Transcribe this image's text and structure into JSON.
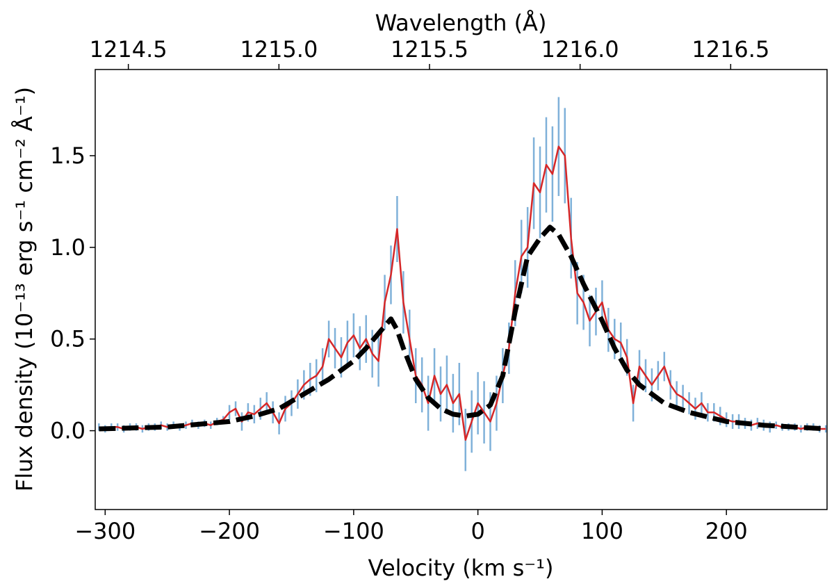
{
  "chart_data": {
    "type": "line",
    "xlabel": "Velocity (km s⁻¹)",
    "ylabel": "Flux density (10⁻¹³ erg s⁻¹ cm⁻² Å⁻¹)",
    "x2label": "Wavelength (Å)",
    "xlim": [
      -308,
      281
    ],
    "ylim": [
      -0.43,
      1.97
    ],
    "x2lim": [
      1214.39,
      1216.82
    ],
    "xticks": [
      {
        "value": -300,
        "label": "−300"
      },
      {
        "value": -200,
        "label": "−200"
      },
      {
        "value": -100,
        "label": "−100"
      },
      0,
      100,
      200
    ],
    "yticks": [
      {
        "value": 0,
        "label": "0.0"
      },
      0.5,
      {
        "value": 1,
        "label": "1.0"
      },
      1.5
    ],
    "x2ticks": [
      1214.5,
      {
        "value": 1215,
        "label": "1215.0"
      },
      1215.5,
      {
        "value": 1216,
        "label": "1216.0"
      },
      1216.5
    ],
    "grid": false,
    "series": [
      {
        "color": "#d62728",
        "error_color": "#7fb1d9",
        "x": [
          -305,
          -300,
          -295,
          -290,
          -285,
          -280,
          -275,
          -270,
          -265,
          -260,
          -255,
          -250,
          -245,
          -240,
          -235,
          -230,
          -225,
          -220,
          -215,
          -210,
          -205,
          -200,
          -195,
          -190,
          -185,
          -180,
          -175,
          -170,
          -165,
          -160,
          -155,
          -150,
          -145,
          -140,
          -135,
          -130,
          -125,
          -120,
          -115,
          -110,
          -105,
          -100,
          -95,
          -90,
          -85,
          -80,
          -75,
          -70,
          -65,
          -60,
          -55,
          -50,
          -45,
          -40,
          -35,
          -30,
          -25,
          -20,
          -15,
          -10,
          -5,
          0,
          5,
          10,
          15,
          20,
          25,
          30,
          35,
          40,
          45,
          50,
          55,
          60,
          65,
          70,
          75,
          80,
          85,
          90,
          95,
          100,
          105,
          110,
          115,
          120,
          125,
          130,
          135,
          140,
          145,
          150,
          155,
          160,
          165,
          170,
          175,
          180,
          185,
          190,
          195,
          200,
          205,
          210,
          215,
          220,
          225,
          230,
          235,
          240,
          245,
          250,
          255,
          260,
          265,
          270,
          275,
          280
        ],
        "values": [
          0.02,
          0.01,
          0.02,
          0.02,
          0.01,
          0.02,
          0.02,
          0.01,
          0.02,
          0.02,
          0.03,
          0.02,
          0.03,
          0.02,
          0.03,
          0.04,
          0.03,
          0.04,
          0.03,
          0.05,
          0.06,
          0.1,
          0.12,
          0.05,
          0.1,
          0.09,
          0.12,
          0.15,
          0.1,
          0.04,
          0.12,
          0.15,
          0.2,
          0.25,
          0.28,
          0.3,
          0.35,
          0.5,
          0.45,
          0.4,
          0.48,
          0.52,
          0.45,
          0.5,
          0.42,
          0.38,
          0.7,
          0.85,
          1.1,
          0.7,
          0.5,
          0.3,
          0.25,
          0.15,
          0.3,
          0.2,
          0.25,
          0.15,
          0.2,
          -0.05,
          0.05,
          0.15,
          0.1,
          0.05,
          0.15,
          0.3,
          0.45,
          0.75,
          0.95,
          1.0,
          1.35,
          1.3,
          1.45,
          1.4,
          1.55,
          1.5,
          1.05,
          0.75,
          0.7,
          0.6,
          0.65,
          0.7,
          0.55,
          0.5,
          0.48,
          0.4,
          0.15,
          0.35,
          0.3,
          0.25,
          0.3,
          0.35,
          0.25,
          0.2,
          0.18,
          0.15,
          0.12,
          0.15,
          0.1,
          0.1,
          0.08,
          0.06,
          0.05,
          0.05,
          0.04,
          0.03,
          0.04,
          0.03,
          0.02,
          0.03,
          0.02,
          0.02,
          0.02,
          0.01,
          0.02,
          0.02,
          0.01,
          0.01
        ],
        "errors": [
          0.02,
          0.02,
          0.02,
          0.02,
          0.02,
          0.02,
          0.02,
          0.02,
          0.02,
          0.02,
          0.02,
          0.02,
          0.02,
          0.02,
          0.02,
          0.02,
          0.02,
          0.02,
          0.02,
          0.02,
          0.02,
          0.04,
          0.04,
          0.05,
          0.05,
          0.05,
          0.06,
          0.06,
          0.06,
          0.06,
          0.07,
          0.07,
          0.08,
          0.08,
          0.09,
          0.09,
          0.1,
          0.1,
          0.11,
          0.11,
          0.12,
          0.12,
          0.12,
          0.13,
          0.13,
          0.14,
          0.15,
          0.16,
          0.18,
          0.17,
          0.16,
          0.15,
          0.15,
          0.15,
          0.15,
          0.15,
          0.16,
          0.16,
          0.17,
          0.17,
          0.17,
          0.17,
          0.17,
          0.16,
          0.15,
          0.15,
          0.14,
          0.18,
          0.2,
          0.22,
          0.25,
          0.25,
          0.26,
          0.26,
          0.27,
          0.26,
          0.22,
          0.17,
          0.15,
          0.14,
          0.13,
          0.12,
          0.12,
          0.11,
          0.11,
          0.1,
          0.1,
          0.09,
          0.09,
          0.09,
          0.08,
          0.08,
          0.08,
          0.07,
          0.07,
          0.06,
          0.06,
          0.06,
          0.05,
          0.05,
          0.05,
          0.04,
          0.04,
          0.04,
          0.03,
          0.03,
          0.03,
          0.03,
          0.03,
          0.02,
          0.02,
          0.02,
          0.02,
          0.02,
          0.02,
          0.02,
          0.02,
          0.02
        ]
      },
      {
        "color": "#000000",
        "dashed": true,
        "x": [
          -305,
          -250,
          -200,
          -180,
          -160,
          -140,
          -120,
          -100,
          -90,
          -80,
          -70,
          -65,
          -60,
          -50,
          -40,
          -30,
          -20,
          -10,
          0,
          10,
          20,
          30,
          40,
          50,
          58,
          65,
          75,
          85,
          100,
          110,
          120,
          130,
          140,
          150,
          170,
          200,
          230,
          280
        ],
        "values": [
          0.01,
          0.02,
          0.05,
          0.08,
          0.12,
          0.2,
          0.28,
          0.38,
          0.45,
          0.53,
          0.61,
          0.55,
          0.45,
          0.28,
          0.18,
          0.12,
          0.09,
          0.08,
          0.09,
          0.14,
          0.3,
          0.65,
          0.95,
          1.05,
          1.11,
          1.07,
          0.95,
          0.8,
          0.6,
          0.45,
          0.33,
          0.25,
          0.2,
          0.15,
          0.1,
          0.05,
          0.03,
          0.01
        ]
      }
    ]
  }
}
